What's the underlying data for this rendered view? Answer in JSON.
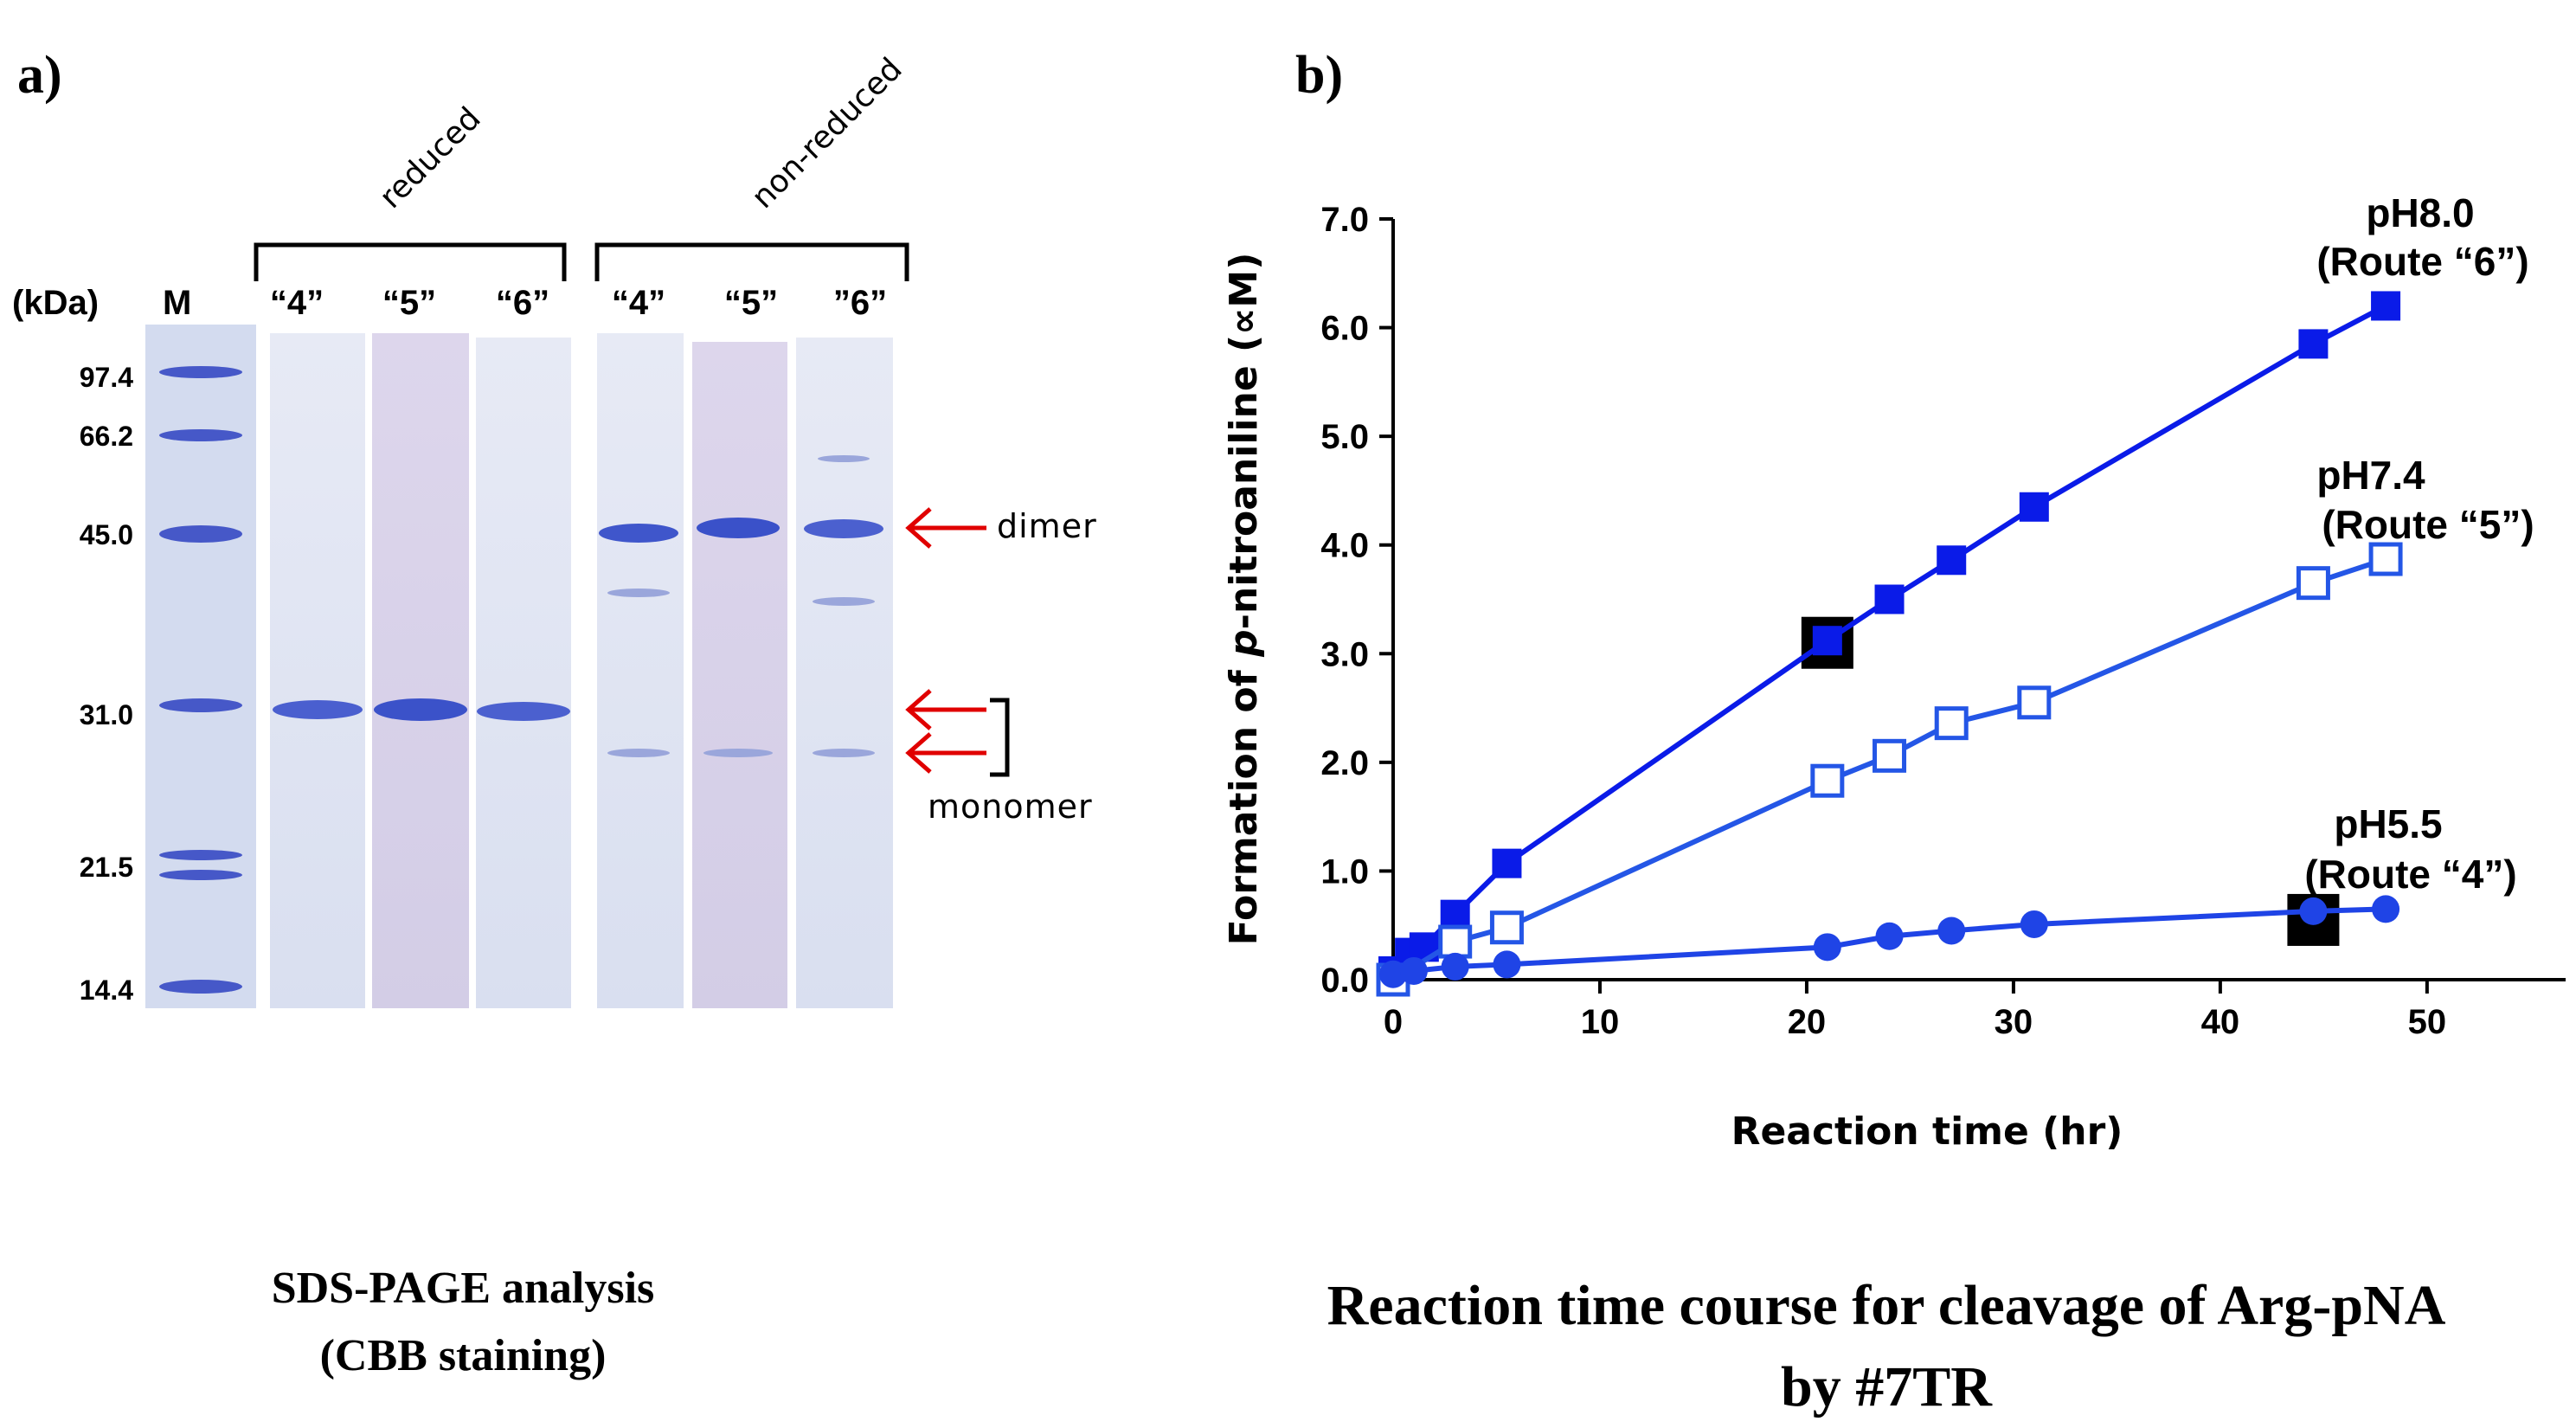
{
  "panel_a": {
    "letter": "a)",
    "group_reduced": "reduced",
    "group_non_reduced": "non-reduced",
    "kda_label": "(kDa)",
    "marker_label": "M",
    "lanes": [
      "“4”",
      "“5”",
      "“6”",
      "“4”",
      "“5”",
      "”6”"
    ],
    "mw_labels": [
      "97.4",
      "66.2",
      "45.0",
      "31.0",
      "21.5",
      "14.4"
    ],
    "dimer_label": "dimer",
    "monomer_label": "monomer",
    "caption_line1": "SDS-PAGE analysis",
    "caption_line2": "(CBB staining)"
  },
  "panel_b": {
    "letter": "b)",
    "caption_line1": "Reaction time course for cleavage of Arg-pNA",
    "caption_line2": "by #7TR"
  },
  "colors": {
    "series_dark": "#0a1be8",
    "series_mid": "#1f44e6",
    "series_light": "#2456e6",
    "arrow": "#e00000",
    "gel_bg": "#d6dcef",
    "band": "#4a5fcf"
  },
  "chart_data": {
    "type": "line",
    "xlabel": "Reaction time (hr)",
    "ylabel_prefix": "Formation of ",
    "ylabel_italic": "p",
    "ylabel_suffix": "-nitroaniline (",
    "ylabel_unit": "∝M",
    "ylabel_close": ")",
    "xlim": [
      0,
      55
    ],
    "ylim": [
      0,
      7
    ],
    "xticks": [
      "0",
      "10",
      "20",
      "30",
      "40",
      "50"
    ],
    "yticks": [
      "0.0",
      "1.0",
      "2.0",
      "3.0",
      "4.0",
      "5.0",
      "6.0",
      "7.0"
    ],
    "series": [
      {
        "name": "pH8.0",
        "route": "(Route “6”)",
        "marker": "square-filled",
        "x": [
          0,
          0.8,
          1.5,
          3,
          5.5,
          21,
          24,
          27,
          31,
          44.5,
          48
        ],
        "y": [
          0.08,
          0.25,
          0.3,
          0.6,
          1.07,
          3.12,
          3.5,
          3.86,
          4.35,
          5.85,
          6.2
        ]
      },
      {
        "name": "pH7.4",
        "route": "(Route “5”)",
        "marker": "square-open",
        "x": [
          0,
          3,
          5.5,
          21,
          24,
          27,
          31,
          44.5,
          48
        ],
        "y": [
          0.0,
          0.35,
          0.48,
          1.83,
          2.06,
          2.36,
          2.55,
          3.65,
          3.87
        ]
      },
      {
        "name": "pH5.5",
        "route": "(Route “4”)",
        "marker": "circle-filled",
        "x": [
          0,
          1,
          3,
          5.5,
          21,
          24,
          27,
          31,
          44.5,
          48
        ],
        "y": [
          0.05,
          0.08,
          0.12,
          0.14,
          0.3,
          0.4,
          0.45,
          0.51,
          0.63,
          0.65
        ]
      }
    ],
    "highlight_points": [
      {
        "x": 21,
        "y": 3.1
      },
      {
        "x": 44.5,
        "y": 0.55
      }
    ]
  }
}
